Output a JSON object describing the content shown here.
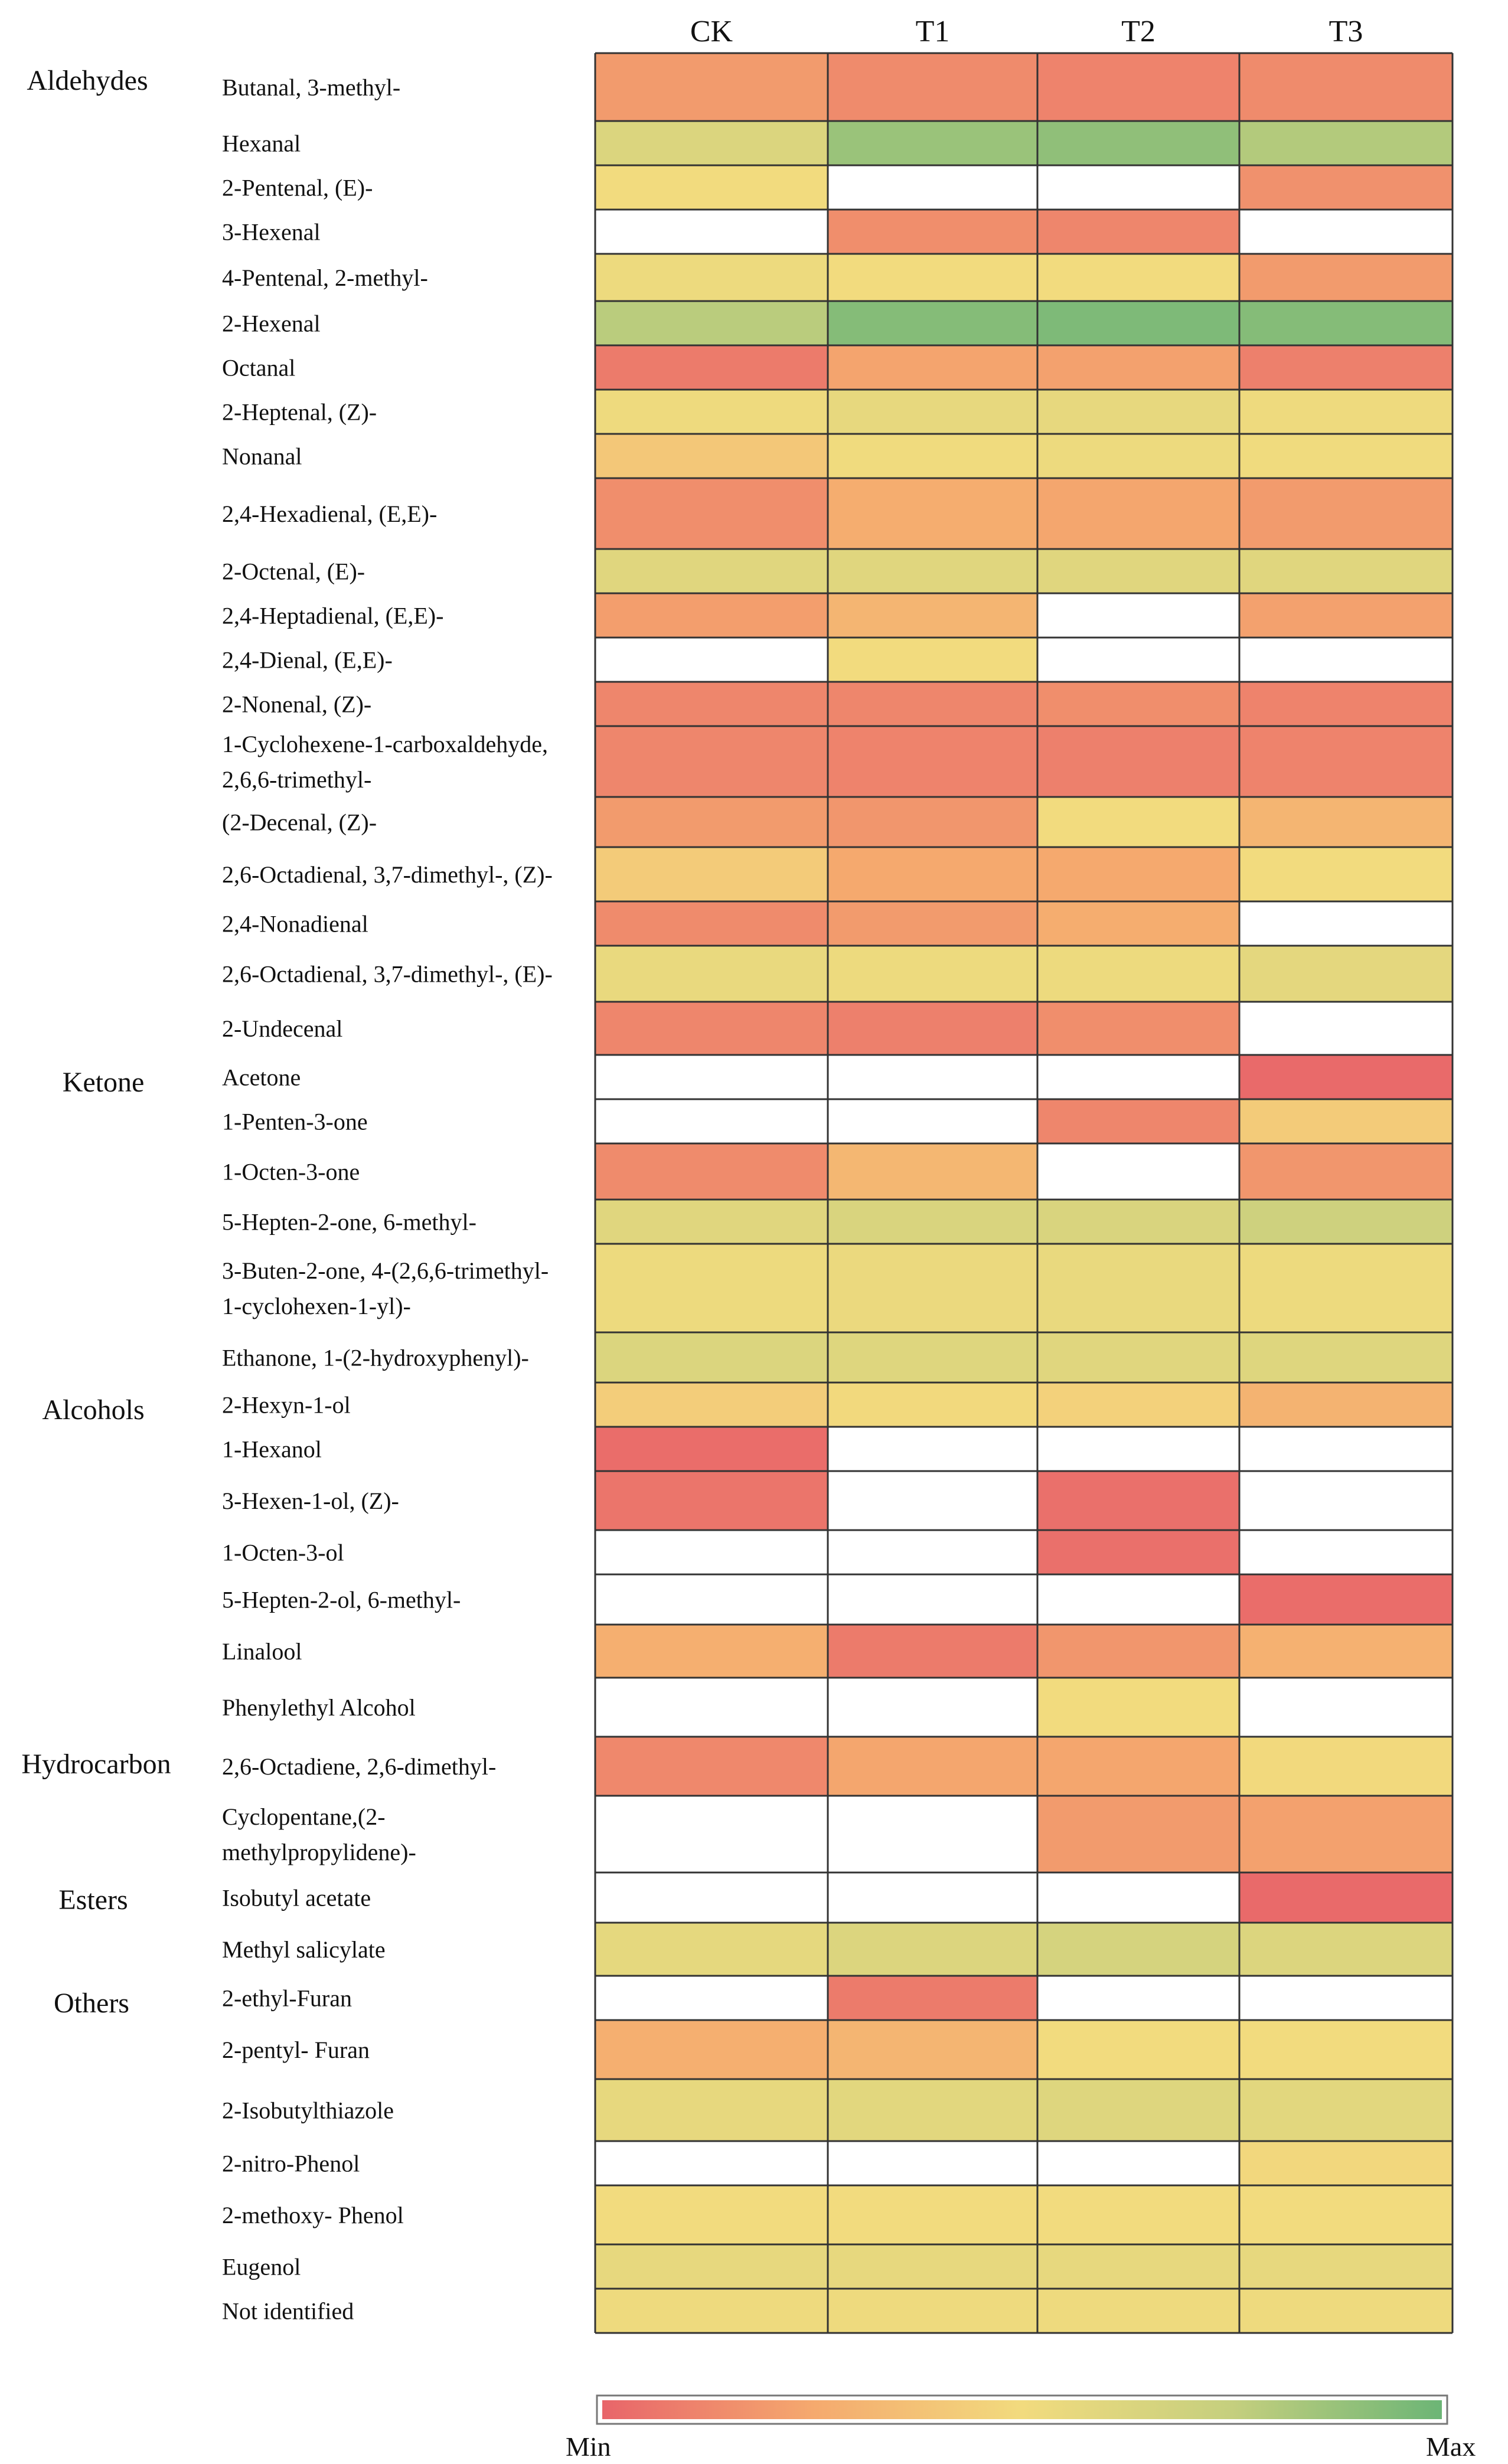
{
  "chart_data": {
    "type": "heatmap",
    "title": "",
    "columns": [
      "CK",
      "T1",
      "T2",
      "T3"
    ],
    "scale": {
      "min_label": "Min",
      "max_label": "Max",
      "colors": [
        "#e8656a",
        "#f5a96e",
        "#f2db7e",
        "#c5cf7e",
        "#6cb576"
      ]
    },
    "value_range": [
      0,
      1
    ],
    "empty_note": "null = no detection (white cell)",
    "groups": [
      {
        "label": "Aldehydes",
        "rows": [
          {
            "label": "Butanal, 3-methyl-",
            "values": [
              0.2,
              0.14,
              0.11,
              0.14
            ]
          },
          {
            "label": "Hexanal",
            "values": [
              0.63,
              0.87,
              0.9,
              0.8
            ]
          },
          {
            "label": "2-Pentenal, (E)-",
            "values": [
              0.5,
              null,
              null,
              0.16
            ]
          },
          {
            "label": "3-Hexenal",
            "values": [
              null,
              0.15,
              0.12,
              null
            ]
          },
          {
            "label": "4-Pentenal, 2-methyl-",
            "values": [
              0.53,
              0.5,
              0.5,
              0.2
            ]
          },
          {
            "label": "2-Hexenal",
            "values": [
              0.78,
              0.93,
              0.95,
              0.93
            ]
          },
          {
            "label": "Octanal",
            "values": [
              0.08,
              0.23,
              0.22,
              0.1
            ]
          },
          {
            "label": "2-Heptenal, (Z)-",
            "values": [
              0.52,
              0.56,
              0.56,
              0.52
            ]
          },
          {
            "label": "Nonanal",
            "values": [
              0.4,
              0.51,
              0.53,
              0.51
            ]
          },
          {
            "label": "2,4-Hexadienal, (E,E)-",
            "values": [
              0.15,
              0.27,
              0.24,
              0.2
            ]
          },
          {
            "label": "2-Octenal, (E)-",
            "values": [
              0.6,
              0.6,
              0.6,
              0.6
            ]
          },
          {
            "label": "2,4-Heptadienal, (E,E)-",
            "values": [
              0.21,
              0.31,
              null,
              0.22
            ]
          },
          {
            "label": "2,4-Dienal, (E,E)-",
            "values": [
              null,
              0.5,
              null,
              null
            ]
          },
          {
            "label": "2-Nonenal, (Z)-",
            "values": [
              0.12,
              0.12,
              0.15,
              0.11
            ]
          },
          {
            "label": "1-Cyclohexene-1-carboxaldehyde, 2,6,6-trimethyl-",
            "values": [
              0.12,
              0.11,
              0.1,
              0.11
            ]
          },
          {
            "label": "(2-Decenal, (Z)-",
            "values": [
              0.2,
              0.18,
              0.5,
              0.31
            ]
          },
          {
            "label": "2,6-Octadienal, 3,7-dimethyl-, (Z)-",
            "values": [
              0.42,
              0.25,
              0.25,
              0.5
            ]
          },
          {
            "label": "2,4-Nonadienal",
            "values": [
              0.14,
              0.2,
              0.27,
              null
            ]
          },
          {
            "label": "2,6-Octadienal, 3,7-dimethyl-, (E)-",
            "values": [
              0.55,
              0.53,
              0.53,
              0.58
            ]
          },
          {
            "label": "2-Undecenal",
            "values": [
              0.12,
              0.1,
              0.15,
              null
            ]
          }
        ]
      },
      {
        "label": "Ketone",
        "rows": [
          {
            "label": "Acetone",
            "values": [
              null,
              null,
              null,
              0.02
            ]
          },
          {
            "label": "1-Penten-3-one",
            "values": [
              null,
              null,
              0.12,
              0.42
            ]
          },
          {
            "label": "1-Octen-3-one",
            "values": [
              0.14,
              0.32,
              null,
              0.18
            ]
          },
          {
            "label": "5-Hepten-2-one, 6-methyl-",
            "values": [
              0.6,
              0.64,
              0.64,
              0.7
            ]
          },
          {
            "label": "3-Buten-2-one, 4-(2,6,6-trimethyl-1-cyclohexen-1-yl)-",
            "values": [
              0.53,
              0.54,
              0.55,
              0.53
            ]
          },
          {
            "label": "Ethanone, 1-(2-hydroxyphenyl)-",
            "values": [
              0.63,
              0.61,
              0.6,
              0.61
            ]
          }
        ]
      },
      {
        "label": "Alcohols",
        "rows": [
          {
            "label": "2-Hexyn-1-ol",
            "values": [
              0.43,
              0.49,
              0.45,
              0.3
            ]
          },
          {
            "label": "1-Hexanol",
            "values": [
              0.03,
              null,
              null,
              null
            ]
          },
          {
            "label": "3-Hexen-1-ol, (Z)-",
            "values": [
              0.06,
              null,
              0.04,
              null
            ]
          },
          {
            "label": "1-Octen-3-ol",
            "values": [
              null,
              null,
              0.04,
              null
            ]
          },
          {
            "label": "5-Hepten-2-ol, 6-methyl-",
            "values": [
              null,
              null,
              null,
              0.03
            ]
          },
          {
            "label": "Linalool",
            "values": [
              0.28,
              0.08,
              0.18,
              0.29
            ]
          },
          {
            "label": "Phenylethyl Alcohol",
            "values": [
              null,
              null,
              0.5,
              null
            ]
          }
        ]
      },
      {
        "label": "Hydrocarbon",
        "rows": [
          {
            "label": "2,6-Octadiene, 2,6-dimethyl-",
            "values": [
              0.13,
              0.24,
              0.24,
              0.49
            ]
          },
          {
            "label": "Cyclopentane,(2-methylpropylidene)-",
            "values": [
              null,
              null,
              0.2,
              0.22
            ]
          }
        ]
      },
      {
        "label": "Esters",
        "rows": [
          {
            "label": "Isobutyl acetate",
            "values": [
              null,
              null,
              null,
              0.02
            ]
          },
          {
            "label": "Methyl salicylate",
            "values": [
              0.57,
              0.62,
              0.66,
              0.62
            ]
          }
        ]
      },
      {
        "label": "Others",
        "rows": [
          {
            "label": "2-ethyl-Furan",
            "values": [
              null,
              0.08,
              null,
              null
            ]
          },
          {
            "label": "2-pentyl- Furan",
            "values": [
              0.28,
              0.31,
              0.5,
              0.5
            ]
          },
          {
            "label": "2-Isobutylthiazole",
            "values": [
              0.56,
              0.59,
              0.61,
              0.59
            ]
          },
          {
            "label": "2-nitro-Phenol",
            "values": [
              null,
              null,
              null,
              0.48
            ]
          },
          {
            "label": "2-methoxy- Phenol",
            "values": [
              0.5,
              0.5,
              0.5,
              0.5
            ]
          },
          {
            "label": "Eugenol",
            "values": [
              0.56,
              0.56,
              0.56,
              0.56
            ]
          },
          {
            "label": "Not identified",
            "values": [
              0.52,
              0.52,
              0.52,
              0.52
            ]
          }
        ]
      }
    ]
  }
}
